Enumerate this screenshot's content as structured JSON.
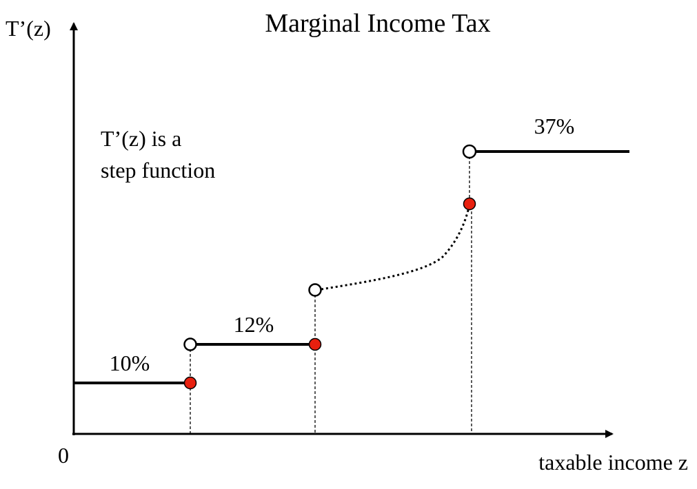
{
  "title": "Marginal Income Tax",
  "y_axis_label": "T’(z)",
  "x_axis_label": "taxable income z",
  "origin_label": "0",
  "note": {
    "line1": "T’(z) is a",
    "line2": "step function"
  },
  "rates": {
    "r1": "10%",
    "r2": "12%",
    "r3": "37%"
  },
  "colors": {
    "line": "#000000",
    "closed_point": "#e8200f",
    "open_point": "#ffffff"
  }
}
